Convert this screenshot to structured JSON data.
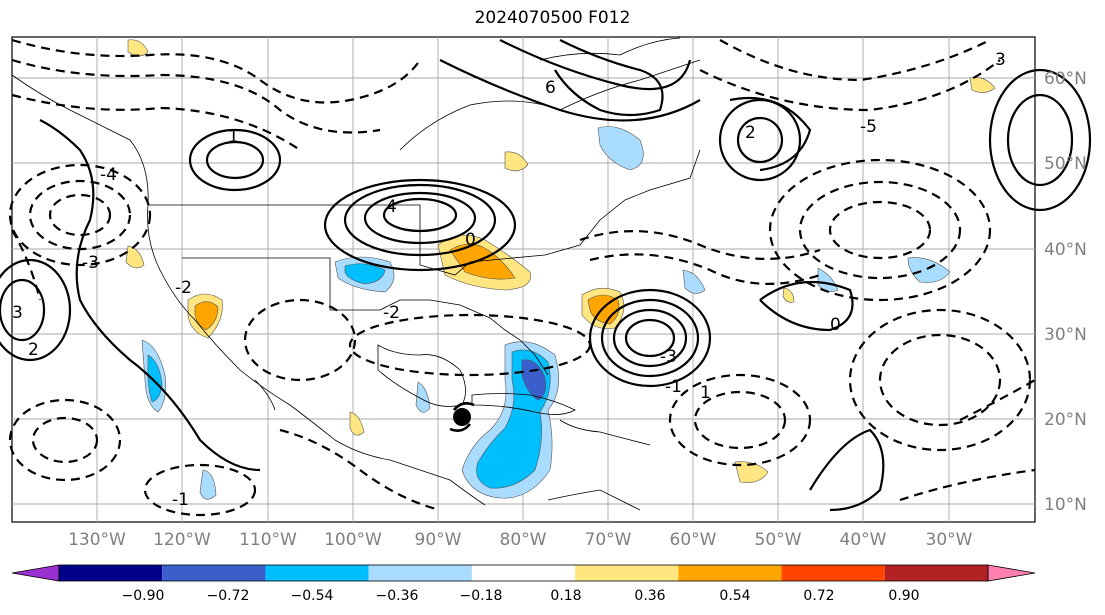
{
  "title": "2024070500 F012",
  "lon_labels": [
    "130°W",
    "120°W",
    "110°W",
    "100°W",
    "90°W",
    "80°W",
    "70°W",
    "60°W",
    "50°W",
    "40°W",
    "30°W"
  ],
  "lat_labels": [
    "60°N",
    "50°N",
    "40°N",
    "30°N",
    "20°N",
    "10°N"
  ],
  "colorbar": {
    "ticks": [
      "−0.90",
      "−0.72",
      "−0.54",
      "−0.36",
      "−0.18",
      "0.18",
      "0.36",
      "0.54",
      "0.72",
      "0.90"
    ],
    "colors": [
      "#9b30d0",
      "#00008b",
      "#3a5fcd",
      "#00bfff",
      "#aadcff",
      "#ffffff",
      "#ffe680",
      "#ffa500",
      "#ff4500",
      "#b22222",
      "#ff80b0"
    ]
  },
  "contour_labels": [
    "3",
    "2",
    "1",
    "0",
    "-1",
    "-2",
    "-3",
    "-4",
    "4",
    "6",
    "-3",
    "3",
    "-2",
    "2",
    "1",
    "-1",
    "0",
    "-5"
  ]
}
